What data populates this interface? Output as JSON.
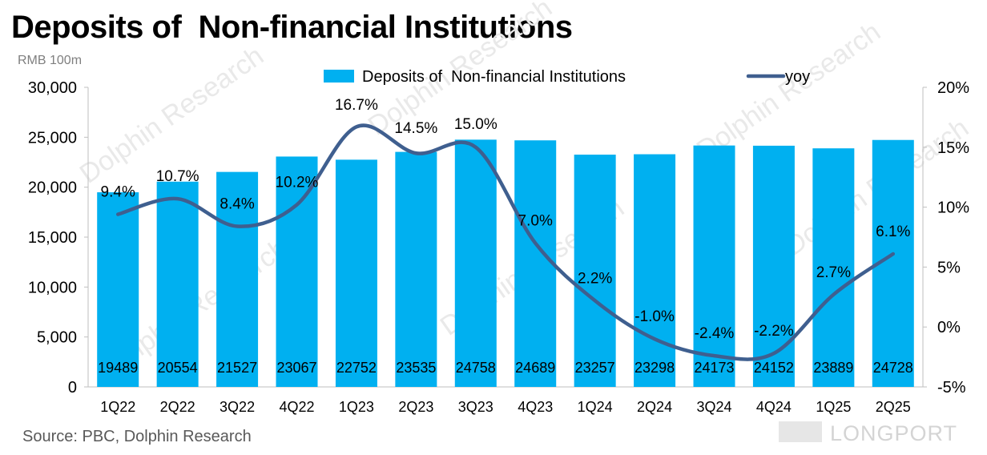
{
  "title": "Deposits of  Non-financial Institutions",
  "unit_label": "RMB 100m",
  "source": "Source: PBC, Dolphin Research",
  "brand": "LONGPORT",
  "watermark": "Dolphin Research",
  "colors": {
    "bar": "#00B0F0",
    "line": "#3F5F8F",
    "axis": "#bfbfbf"
  },
  "chart_data": {
    "type": "bar",
    "categories": [
      "1Q22",
      "2Q22",
      "3Q22",
      "4Q22",
      "1Q23",
      "2Q23",
      "3Q23",
      "4Q23",
      "1Q24",
      "2Q24",
      "3Q24",
      "4Q24",
      "1Q25",
      "2Q25"
    ],
    "series": [
      {
        "name": "Deposits of  Non-financial Institutions",
        "type": "bar",
        "axis": "left",
        "values": [
          19489,
          20554,
          21527,
          23067,
          22752,
          23535,
          24758,
          24689,
          23257,
          23298,
          24173,
          24152,
          23889,
          24728
        ],
        "labels": [
          "19489",
          "20554",
          "21527",
          "23067",
          "22752",
          "23535",
          "24758",
          "24689",
          "23257",
          "23298",
          "24173",
          "24152",
          "23889",
          "24728"
        ]
      },
      {
        "name": "yoy",
        "type": "line",
        "axis": "right",
        "values": [
          9.4,
          10.7,
          8.4,
          10.2,
          16.7,
          14.5,
          15.0,
          7.0,
          2.2,
          -1.0,
          -2.4,
          -2.2,
          2.7,
          6.1
        ],
        "labels": [
          "9.4%",
          "10.7%",
          "8.4%",
          "10.2%",
          "16.7%",
          "14.5%",
          "15.0%",
          "7.0%",
          "2.2%",
          "-1.0%",
          "-2.4%",
          "-2.2%",
          "2.7%",
          "6.1%"
        ]
      }
    ],
    "y_left": {
      "min": 0,
      "max": 30000,
      "ticks": [
        "0",
        "5,000",
        "10,000",
        "15,000",
        "20,000",
        "25,000",
        "30,000"
      ]
    },
    "y_right": {
      "min": -5,
      "max": 20,
      "ticks": [
        "-5%",
        "0%",
        "5%",
        "10%",
        "15%",
        "20%"
      ]
    },
    "legend_position": "top",
    "grid": false
  }
}
